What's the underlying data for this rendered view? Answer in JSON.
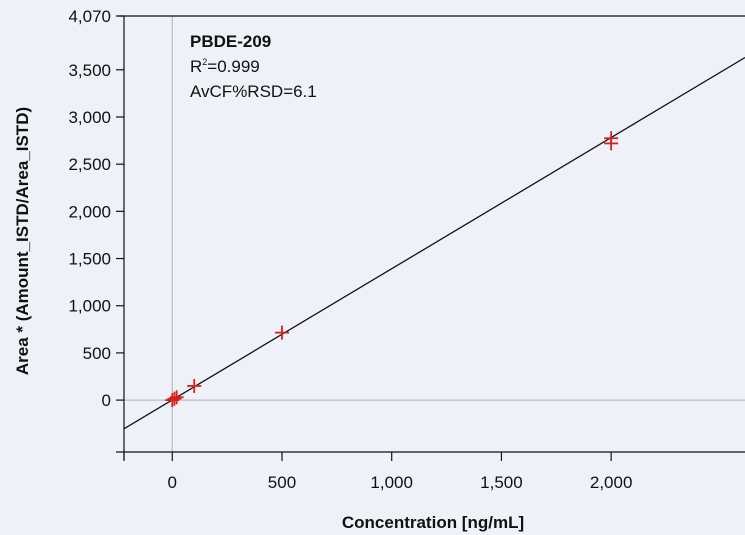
{
  "chart_data": {
    "type": "scatter",
    "title": "",
    "xlabel": "Concentration [ng/mL]",
    "ylabel": "Area * (Amount_ISTD/Area_ISTD)",
    "xlim": [
      -220,
      2610
    ],
    "ylim": [
      -550,
      4070
    ],
    "x_ticks": [
      0,
      500,
      1000,
      1500,
      2000
    ],
    "x_tick_labels": [
      "0",
      "500",
      "1,000",
      "1,500",
      "2,000"
    ],
    "y_ticks": [
      0,
      500,
      1000,
      1500,
      2000,
      2500,
      3000,
      3500,
      4070
    ],
    "y_tick_labels": [
      "0",
      "500",
      "1,000",
      "1,500",
      "2,000",
      "2,500",
      "3,000",
      "3,500",
      "4,070"
    ],
    "grid": false,
    "zero_lines": true,
    "annotation": {
      "compound": "PBDE-209",
      "r2_prefix": "R",
      "r2_sup": "2",
      "r2_value": "=0.999",
      "rsd": "AvCF%RSD=6.1"
    },
    "series": [
      {
        "type": "scatter",
        "marker": "plus",
        "color": "#d62020",
        "points": [
          {
            "x": 0,
            "y": 0
          },
          {
            "x": 10,
            "y": 15
          },
          {
            "x": 20,
            "y": 30
          },
          {
            "x": 100,
            "y": 150
          },
          {
            "x": 500,
            "y": 715
          },
          {
            "x": 2000,
            "y": 2720
          },
          {
            "x": 2000,
            "y": 2775
          }
        ]
      }
    ],
    "fit_line": {
      "color": "#111111",
      "slope": 1.39,
      "intercept": 2,
      "x_range": [
        -220,
        2610
      ]
    }
  }
}
